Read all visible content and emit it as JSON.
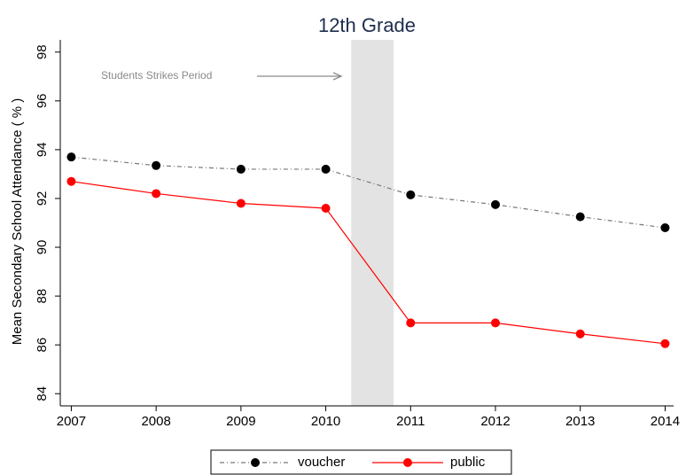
{
  "chart_data": {
    "type": "line",
    "title": "12th Grade",
    "ylabel": "Mean Secondary School Attendance ( % )",
    "annotation": "Students Strikes Period",
    "shade": [
      2010.3,
      2010.8
    ],
    "x": [
      2007,
      2008,
      2009,
      2010,
      2011,
      2012,
      2013,
      2014
    ],
    "series": [
      {
        "name": "voucher",
        "color": "#000000",
        "line_color": "#777777",
        "dash": "dashdot",
        "values": [
          93.7,
          93.35,
          93.2,
          93.2,
          92.15,
          91.75,
          91.25,
          90.8
        ]
      },
      {
        "name": "public",
        "color": "#ff0000",
        "line_color": "#ff0000",
        "dash": "solid",
        "values": [
          92.7,
          92.2,
          91.8,
          91.6,
          86.9,
          86.9,
          86.45,
          86.05
        ]
      }
    ],
    "xlim": [
      2006.87,
      2014.1
    ],
    "ylim": [
      83.5,
      98.5
    ],
    "xticks": [
      2007,
      2008,
      2009,
      2010,
      2011,
      2012,
      2013,
      2014
    ],
    "yticks": [
      84,
      86,
      88,
      90,
      92,
      94,
      96,
      98
    ]
  }
}
